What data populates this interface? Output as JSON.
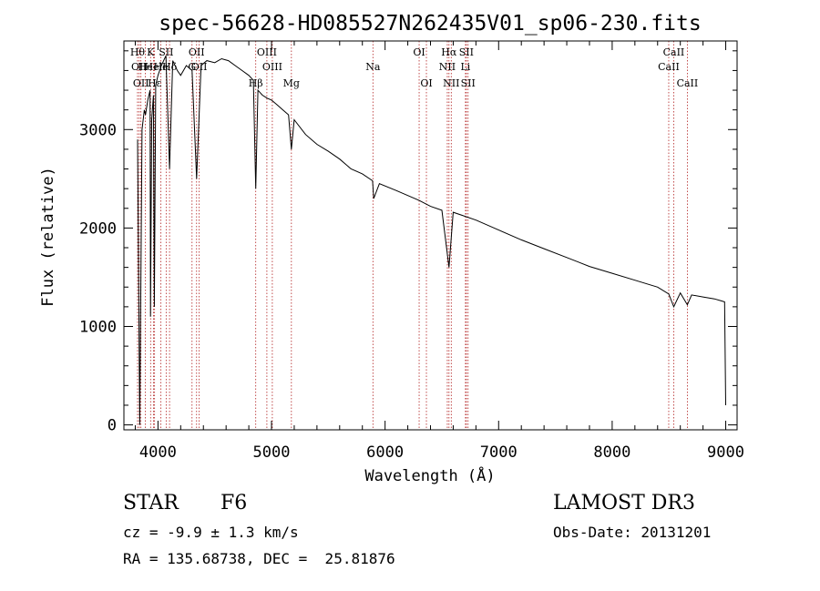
{
  "chart_data": {
    "type": "line",
    "title": "spec-56628-HD085527N262435V01_sp06-230.fits",
    "xlabel": "Wavelength (Å)",
    "ylabel": "Flux (relative)",
    "xlim": [
      3700,
      9100
    ],
    "ylim": [
      -50,
      3900
    ],
    "xticks": [
      4000,
      5000,
      6000,
      7000,
      8000,
      9000
    ],
    "yticks": [
      0,
      1000,
      2000,
      3000
    ],
    "series": [
      {
        "name": "spectrum",
        "x": [
          3820,
          3840,
          3860,
          3880,
          3890,
          3910,
          3930,
          3934,
          3945,
          3960,
          3968,
          3980,
          4000,
          4030,
          4070,
          4102,
          4130,
          4170,
          4200,
          4250,
          4300,
          4340,
          4380,
          4430,
          4500,
          4560,
          4620,
          4680,
          4740,
          4800,
          4840,
          4861,
          4880,
          4920,
          4960,
          5000,
          5050,
          5100,
          5150,
          5175,
          5200,
          5300,
          5400,
          5500,
          5600,
          5700,
          5800,
          5890,
          5900,
          5950,
          6100,
          6300,
          6400,
          6500,
          6563,
          6600,
          6700,
          6800,
          7000,
          7200,
          7400,
          7600,
          7800,
          8000,
          8200,
          8400,
          8498,
          8542,
          8600,
          8662,
          8700,
          8800,
          8900,
          8960,
          8990,
          9000
        ],
        "y": [
          2900,
          0,
          3000,
          3200,
          3150,
          3300,
          3400,
          1100,
          3100,
          3350,
          1200,
          3450,
          3550,
          3650,
          3750,
          2600,
          3700,
          3600,
          3550,
          3650,
          3600,
          2500,
          3650,
          3700,
          3680,
          3720,
          3700,
          3650,
          3600,
          3550,
          3500,
          2400,
          3400,
          3350,
          3320,
          3300,
          3250,
          3200,
          3150,
          2800,
          3100,
          2950,
          2850,
          2780,
          2700,
          2600,
          2550,
          2480,
          2300,
          2450,
          2380,
          2280,
          2220,
          2180,
          1600,
          2160,
          2120,
          2080,
          1980,
          1880,
          1790,
          1700,
          1610,
          1540,
          1470,
          1400,
          1330,
          1200,
          1340,
          1220,
          1320,
          1300,
          1280,
          1260,
          1250,
          200
        ]
      }
    ],
    "lines": [
      {
        "w": 3820,
        "label": "Hθ",
        "row": 1
      },
      {
        "w": 3835,
        "label": "OII",
        "row": 2
      },
      {
        "w": 3850,
        "label": "OII",
        "row": 3
      },
      {
        "w": 3889,
        "label": "He",
        "row": 2
      },
      {
        "w": 3935,
        "label": "K",
        "row": 1
      },
      {
        "w": 3960,
        "label": "Hel",
        "row": 2
      },
      {
        "w": 3970,
        "label": "Hε",
        "row": 3
      },
      {
        "w": 4026,
        "label": "He",
        "row": 2
      },
      {
        "w": 4072,
        "label": "SII",
        "row": 1
      },
      {
        "w": 4102,
        "label": "Hδ",
        "row": 2
      },
      {
        "w": 4300,
        "label": "G",
        "row": 2
      },
      {
        "w": 4340,
        "label": "OII",
        "row": 1
      },
      {
        "w": 4363,
        "label": "OII",
        "row": 2
      },
      {
        "w": 4861,
        "label": "Hβ",
        "row": 3
      },
      {
        "w": 4959,
        "label": "OIII",
        "row": 1
      },
      {
        "w": 5007,
        "label": "OIII",
        "row": 2
      },
      {
        "w": 5175,
        "label": "Mg",
        "row": 3
      },
      {
        "w": 5893,
        "label": "Na",
        "row": 2
      },
      {
        "w": 6300,
        "label": "OI",
        "row": 1
      },
      {
        "w": 6364,
        "label": "OI",
        "row": 3
      },
      {
        "w": 6548,
        "label": "NII",
        "row": 2
      },
      {
        "w": 6563,
        "label": "Hα",
        "row": 1
      },
      {
        "w": 6583,
        "label": "NII",
        "row": 3
      },
      {
        "w": 6708,
        "label": "Li",
        "row": 2
      },
      {
        "w": 6716,
        "label": "SII",
        "row": 1
      },
      {
        "w": 6731,
        "label": "SII",
        "row": 3
      },
      {
        "w": 8498,
        "label": "CaII",
        "row": 2
      },
      {
        "w": 8542,
        "label": "CaII",
        "row": 1
      },
      {
        "w": 8662,
        "label": "CaII",
        "row": 3
      }
    ],
    "grid": false,
    "legend": "none"
  },
  "info": {
    "object_class": "STAR",
    "subclass": "F6",
    "survey": "LAMOST DR3",
    "redshift_text": "cz = -9.9 ± 1.3 km/s",
    "obs_date": "Obs-Date: 20131201",
    "coords": "RA = 135.68738, DEC =  25.81876"
  },
  "colors": {
    "line_marker": "#b22222",
    "spectrum": "#000000"
  }
}
